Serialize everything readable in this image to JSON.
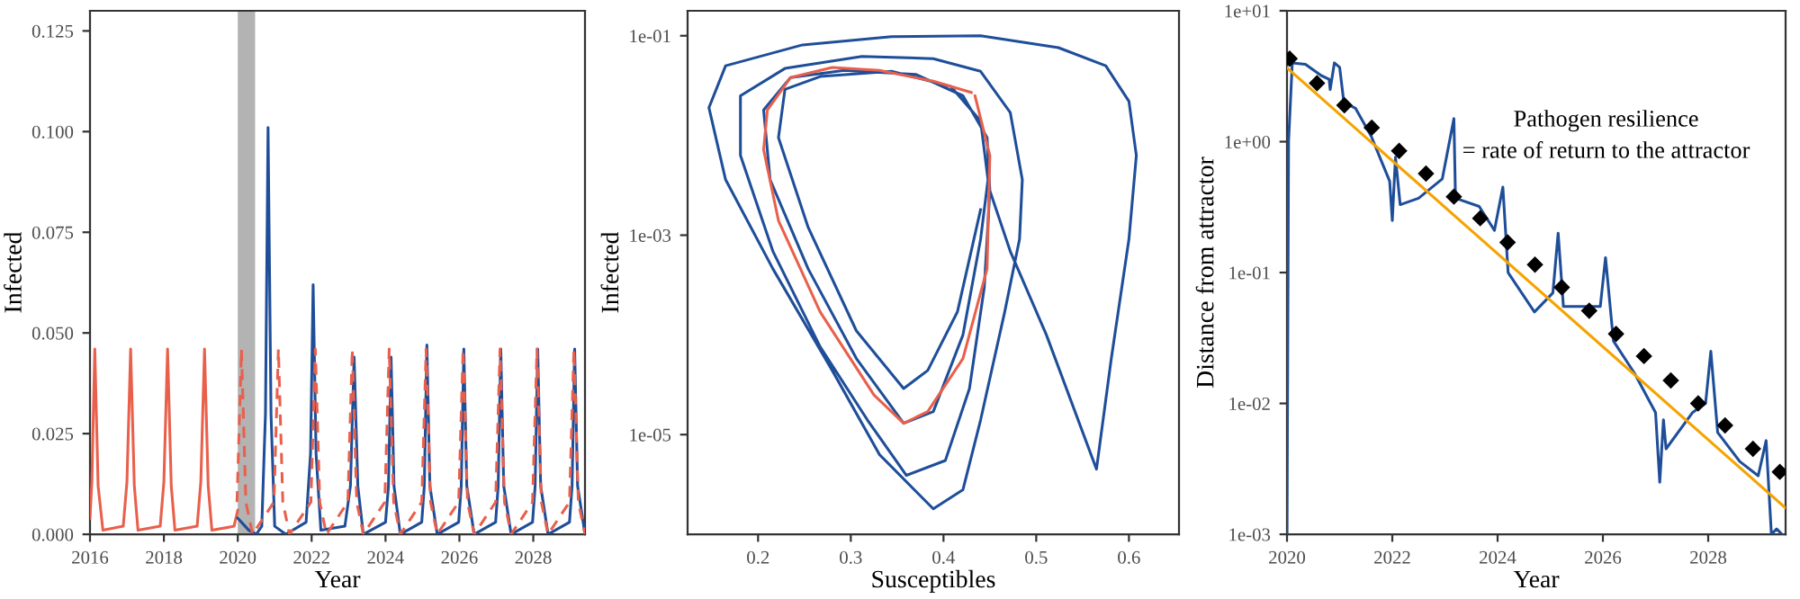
{
  "chart_data": [
    {
      "type": "line",
      "xlabel": "Year",
      "ylabel": "Infected",
      "xlim": [
        2016,
        2029.4
      ],
      "xticks": [
        2016,
        2018,
        2020,
        2022,
        2024,
        2026,
        2028
      ],
      "ylim": [
        0,
        0.13
      ],
      "yticks": [
        {
          "value": 0,
          "label": "0.000"
        },
        {
          "value": 0.025,
          "label": "0.025"
        },
        {
          "value": 0.05,
          "label": "0.050"
        },
        {
          "value": 0.075,
          "label": "0.075"
        },
        {
          "value": 0.1,
          "label": "0.100"
        },
        {
          "value": 0.125,
          "label": "0.125"
        }
      ],
      "grid": false,
      "legend": false,
      "bands": [
        {
          "axis": "x",
          "from": 2020.0,
          "to": 2020.47,
          "color": "#b3b3b3"
        }
      ],
      "series": [
        {
          "color": "#e8604c",
          "line_style": "solid",
          "x": [
            2016.0,
            2016.05,
            2016.13,
            2016.22,
            2016.35,
            2016.9,
            2017.0,
            2017.1,
            2017.2,
            2017.3,
            2017.9,
            2018.0,
            2018.1,
            2018.2,
            2018.3,
            2018.9,
            2019.0,
            2019.1,
            2019.2,
            2019.3,
            2019.9,
            2020.0
          ],
          "values": [
            0.004,
            0.013,
            0.046,
            0.012,
            0.001,
            0.002,
            0.013,
            0.046,
            0.012,
            0.001,
            0.002,
            0.013,
            0.046,
            0.012,
            0.001,
            0.002,
            0.013,
            0.046,
            0.012,
            0.001,
            0.002,
            0.006
          ]
        },
        {
          "color": "#1f4e99",
          "line_style": "solid",
          "x": [
            2020.0,
            2020.1,
            2020.3,
            2020.5,
            2020.65,
            2020.75,
            2020.82,
            2020.9,
            2021.0,
            2021.3,
            2021.85,
            2021.97,
            2022.04,
            2022.12,
            2022.25,
            2022.9,
            2023.05,
            2023.15,
            2023.25,
            2023.4,
            2024.0,
            2024.08,
            2024.15,
            2024.23,
            2024.4,
            2024.98,
            2025.05,
            2025.12,
            2025.2,
            2025.4,
            2025.98,
            2026.05,
            2026.12,
            2026.2,
            2026.4,
            2026.98,
            2027.05,
            2027.12,
            2027.2,
            2027.4,
            2027.98,
            2028.05,
            2028.12,
            2028.2,
            2028.4,
            2028.98,
            2029.05,
            2029.12,
            2029.2,
            2029.4
          ],
          "values": [
            0.004,
            0.003,
            0.001,
            0.0,
            0.002,
            0.03,
            0.101,
            0.03,
            0.002,
            0.0,
            0.003,
            0.02,
            0.062,
            0.02,
            0.001,
            0.002,
            0.012,
            0.044,
            0.012,
            0.0,
            0.003,
            0.012,
            0.044,
            0.012,
            0.0,
            0.003,
            0.012,
            0.047,
            0.012,
            0.0,
            0.003,
            0.012,
            0.046,
            0.012,
            0.0,
            0.003,
            0.012,
            0.046,
            0.012,
            0.0,
            0.003,
            0.012,
            0.046,
            0.012,
            0.0,
            0.003,
            0.012,
            0.046,
            0.012,
            0.0
          ]
        },
        {
          "color": "#e8604c",
          "line_style": "dashed",
          "x": [
            2019.98,
            2020.1,
            2020.22,
            2020.4,
            2020.98,
            2021.1,
            2021.22,
            2021.4,
            2021.98,
            2022.1,
            2022.22,
            2022.4,
            2022.98,
            2023.1,
            2023.22,
            2023.4,
            2023.98,
            2024.1,
            2024.22,
            2024.4,
            2024.98,
            2025.1,
            2025.22,
            2025.4,
            2025.98,
            2026.1,
            2026.22,
            2026.4,
            2026.98,
            2027.1,
            2027.22,
            2027.4,
            2027.98,
            2028.1,
            2028.22,
            2028.4,
            2028.98,
            2029.1,
            2029.22,
            2029.4
          ],
          "values": [
            0.008,
            0.046,
            0.008,
            0.0,
            0.008,
            0.046,
            0.008,
            0.0,
            0.008,
            0.046,
            0.008,
            0.0,
            0.008,
            0.046,
            0.008,
            0.0,
            0.008,
            0.046,
            0.008,
            0.0,
            0.008,
            0.046,
            0.008,
            0.0,
            0.008,
            0.046,
            0.008,
            0.0,
            0.008,
            0.046,
            0.008,
            0.0,
            0.008,
            0.046,
            0.008,
            0.0,
            0.008,
            0.046,
            0.008,
            0.0
          ]
        }
      ]
    },
    {
      "type": "line",
      "xlabel": "Susceptibles",
      "ylabel": "Infected",
      "log": "y",
      "xlim": [
        0.124,
        0.654
      ],
      "xticks": [
        0.2,
        0.3,
        0.4,
        0.5,
        0.6
      ],
      "ylim": [
        1e-06,
        0.178
      ],
      "yticks": [
        {
          "value": 1e-05,
          "label": "1e-05"
        },
        {
          "value": 0.001,
          "label": "1e-03"
        },
        {
          "value": 0.1,
          "label": "1e-01"
        }
      ],
      "grid": false,
      "series": [
        {
          "color": "#1f4e99",
          "line_style": "solid",
          "x": [
            0.45,
            0.472,
            0.511,
            0.565,
            0.581,
            0.6,
            0.608,
            0.6,
            0.575,
            0.524,
            0.44,
            0.344,
            0.248,
            0.165,
            0.147,
            0.165,
            0.216,
            0.28,
            0.331,
            0.389,
            0.421,
            0.44,
            0.466,
            0.482,
            0.485,
            0.472,
            0.44,
            0.389,
            0.312,
            0.229,
            0.181,
            0.181,
            0.216,
            0.267,
            0.318,
            0.36,
            0.402,
            0.428,
            0.444,
            0.45,
            0.447,
            0.421,
            0.37,
            0.293,
            0.235,
            0.206,
            0.213,
            0.254,
            0.306,
            0.357,
            0.389,
            0.421,
            0.44,
            0.448,
            0.44,
            0.408,
            0.344,
            0.267,
            0.229,
            0.222,
            0.254,
            0.306,
            0.357,
            0.383,
            0.415,
            0.44
          ],
          "values": [
            0.0028,
            0.00069,
            0.0001,
            4.5e-06,
            5.8e-05,
            0.00091,
            0.0063,
            0.022,
            0.05,
            0.076,
            0.1,
            0.098,
            0.081,
            0.05,
            0.019,
            0.0036,
            0.00046,
            4.4e-05,
            6.3e-06,
            1.8e-06,
            2.8e-06,
            1.4e-05,
            0.00017,
            0.00091,
            0.0036,
            0.017,
            0.044,
            0.059,
            0.062,
            0.047,
            0.025,
            0.0063,
            0.00069,
            7.6e-05,
            1.4e-05,
            3.9e-06,
            5.5e-06,
            2.9e-05,
            0.0003,
            0.0028,
            0.0095,
            0.025,
            0.041,
            0.045,
            0.038,
            0.018,
            0.0036,
            0.00046,
            5.8e-05,
            1.3e-05,
            1.7e-05,
            0.0001,
            0.00091,
            0.0036,
            0.014,
            0.031,
            0.044,
            0.039,
            0.029,
            0.0095,
            0.0012,
            0.00011,
            2.9e-05,
            4.4e-05,
            0.00017,
            0.0018
          ]
        },
        {
          "color": "#e8604c",
          "line_style": "solid",
          "x": [
            0.434,
            0.45,
            0.447,
            0.421,
            0.383,
            0.357,
            0.325,
            0.267,
            0.222,
            0.206,
            0.21,
            0.235,
            0.28,
            0.331,
            0.389,
            0.43
          ],
          "values": [
            0.025,
            0.0063,
            0.00046,
            5.8e-05,
            1.7e-05,
            1.3e-05,
            2.5e-05,
            0.00017,
            0.0014,
            0.0072,
            0.018,
            0.038,
            0.048,
            0.045,
            0.035,
            0.027
          ]
        }
      ]
    },
    {
      "type": "line",
      "xlabel": "Year",
      "ylabel": "Distance from attractor",
      "log": "y",
      "xlim": [
        2020,
        2029.47
      ],
      "xticks": [
        2020,
        2022,
        2024,
        2026,
        2028
      ],
      "ylim": [
        0.001,
        10
      ],
      "yticks": [
        {
          "value": 0.001,
          "label": "1e-03"
        },
        {
          "value": 0.01,
          "label": "1e-02"
        },
        {
          "value": 0.1,
          "label": "1e-01"
        },
        {
          "value": 1,
          "label": "1e+00"
        },
        {
          "value": 10,
          "label": "1e+01"
        }
      ],
      "grid": false,
      "annotations": [
        "Pathogen resilience\n= rate of return to the attractor"
      ],
      "series": [
        {
          "color": "#1f4e99",
          "line_style": "solid",
          "x": [
            2020.0,
            2020.03,
            2020.1,
            2020.35,
            2020.65,
            2020.8,
            2020.82,
            2020.9,
            2021.0,
            2021.08,
            2021.3,
            2021.6,
            2021.8,
            2021.95,
            2022.0,
            2022.06,
            2022.15,
            2022.5,
            2022.95,
            2023.17,
            2023.2,
            2023.65,
            2023.94,
            2024.1,
            2024.2,
            2024.7,
            2025.05,
            2025.15,
            2025.25,
            2025.95,
            2026.05,
            2026.2,
            2026.6,
            2027.0,
            2027.08,
            2027.15,
            2027.2,
            2027.7,
            2027.95,
            2028.05,
            2028.18,
            2028.6,
            2028.95,
            2029.1,
            2029.2,
            2029.3,
            2029.4
          ],
          "values": [
            0.001,
            1.0,
            4.0,
            3.9,
            3.2,
            3.0,
            2.5,
            4.0,
            3.7,
            2.0,
            1.8,
            1.1,
            0.7,
            0.5,
            0.25,
            0.76,
            0.33,
            0.37,
            0.52,
            1.5,
            0.37,
            0.32,
            0.21,
            0.45,
            0.1,
            0.05,
            0.07,
            0.2,
            0.055,
            0.055,
            0.13,
            0.03,
            0.017,
            0.0085,
            0.0025,
            0.0075,
            0.0045,
            0.0085,
            0.01,
            0.025,
            0.006,
            0.0036,
            0.0028,
            0.0052,
            0.001,
            0.0011,
            0.001
          ]
        },
        {
          "color": "#f5a300",
          "line_style": "solid",
          "x": [
            2020.0,
            2029.46
          ],
          "values": [
            3.67,
            0.0016
          ]
        },
        {
          "type": "scatter",
          "color": "#000000",
          "marker": "diamond",
          "x": [
            2020.05,
            2020.57,
            2021.09,
            2021.61,
            2022.13,
            2022.64,
            2023.17,
            2023.67,
            2024.19,
            2024.71,
            2025.22,
            2025.74,
            2026.25,
            2026.78,
            2027.29,
            2027.81,
            2028.32,
            2028.85,
            2029.36
          ],
          "values": [
            4.3,
            2.8,
            1.9,
            1.28,
            0.85,
            0.57,
            0.38,
            0.26,
            0.17,
            0.115,
            0.077,
            0.051,
            0.034,
            0.023,
            0.015,
            0.01,
            0.0068,
            0.0045,
            0.003
          ]
        }
      ]
    }
  ]
}
